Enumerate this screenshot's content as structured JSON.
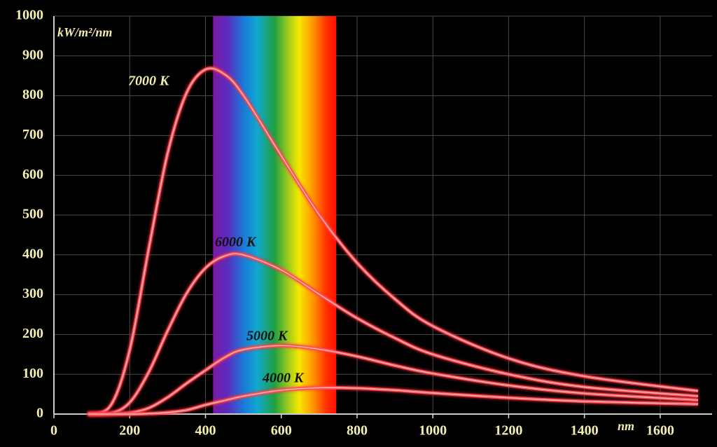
{
  "chart_data": {
    "type": "line",
    "y_label": "kW/m²/nm",
    "x_label": "nm",
    "x": [
      90,
      150,
      200,
      250,
      300,
      350,
      400,
      450,
      500,
      600,
      700,
      800,
      900,
      1000,
      1200,
      1400,
      1700
    ],
    "series": [
      {
        "name": "7000 K",
        "color": "#ff4f55",
        "values": [
          0,
          22,
          161,
          414,
          655,
          807,
          866,
          854,
          801,
          649,
          501,
          380,
          289,
          221,
          140,
          95,
          58
        ]
      },
      {
        "name": "6000 K",
        "color": "#ff4f55",
        "values": [
          0,
          2,
          29,
          105,
          209,
          303,
          367,
          397,
          400,
          362,
          301,
          241,
          191,
          150,
          100,
          68,
          45
        ]
      },
      {
        "name": "5000 K",
        "color": "#ff4f55",
        "values": [
          0,
          0,
          3,
          15,
          42,
          77,
          110,
          142,
          162,
          172,
          163,
          145,
          122,
          102,
          72,
          52,
          35
        ]
      },
      {
        "name": "4000 K",
        "color": "#ff4f55",
        "values": [
          0,
          0,
          0,
          1,
          4,
          10,
          23,
          34,
          45,
          60,
          66,
          65,
          60,
          53,
          41,
          32,
          25
        ]
      }
    ],
    "visible_spectrum": [
      420,
      745
    ],
    "xlim": [
      0,
      1700
    ],
    "ylim": [
      0,
      1000
    ],
    "xticks": [
      0,
      200,
      400,
      600,
      800,
      1000,
      1200,
      1400,
      1600
    ],
    "yticks": [
      0,
      100,
      200,
      300,
      400,
      500,
      600,
      700,
      800,
      900,
      1000
    ],
    "grid": true
  }
}
